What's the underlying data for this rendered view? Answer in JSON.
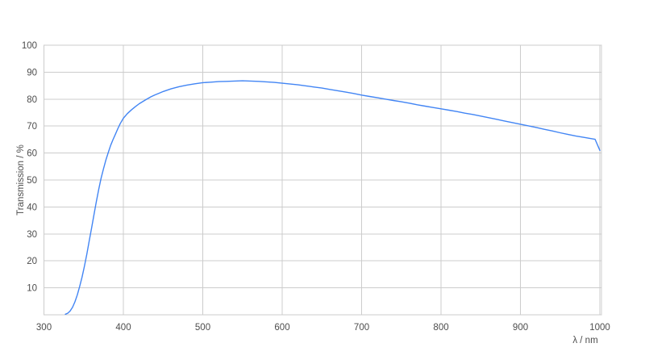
{
  "colors": {
    "background": "#ffffff",
    "grid": "#cccccc",
    "axis_text": "#4d4d4d",
    "line": "#4285f4"
  },
  "chart_data": {
    "type": "line",
    "xlabel": "λ / nm",
    "ylabel": "Transmission / %",
    "xlim": [
      300,
      1002
    ],
    "ylim": [
      0,
      100
    ],
    "x_ticks": [
      300,
      400,
      500,
      600,
      700,
      800,
      900,
      1000
    ],
    "y_ticks": [
      10,
      20,
      30,
      40,
      50,
      60,
      70,
      80,
      90,
      100
    ],
    "grid": true,
    "legend": false,
    "series": [
      {
        "color": "#4285f4",
        "points": [
          [
            327,
            0.2
          ],
          [
            330,
            0.6
          ],
          [
            333,
            1.4
          ],
          [
            336,
            2.8
          ],
          [
            339,
            4.8
          ],
          [
            342,
            7.4
          ],
          [
            345,
            10.5
          ],
          [
            348,
            14.0
          ],
          [
            351,
            18.0
          ],
          [
            354,
            22.5
          ],
          [
            357,
            27.3
          ],
          [
            360,
            32.2
          ],
          [
            363,
            37.2
          ],
          [
            366,
            42.0
          ],
          [
            369,
            46.6
          ],
          [
            372,
            50.7
          ],
          [
            375,
            54.2
          ],
          [
            378,
            57.4
          ],
          [
            381,
            60.2
          ],
          [
            384,
            62.8
          ],
          [
            387,
            65.0
          ],
          [
            390,
            67.0
          ],
          [
            393,
            69.0
          ],
          [
            396,
            70.9
          ],
          [
            400,
            72.9
          ],
          [
            405,
            74.6
          ],
          [
            410,
            76.0
          ],
          [
            415,
            77.2
          ],
          [
            420,
            78.3
          ],
          [
            425,
            79.2
          ],
          [
            430,
            80.1
          ],
          [
            435,
            80.9
          ],
          [
            440,
            81.6
          ],
          [
            445,
            82.2
          ],
          [
            450,
            82.8
          ],
          [
            460,
            83.8
          ],
          [
            470,
            84.6
          ],
          [
            480,
            85.2
          ],
          [
            490,
            85.7
          ],
          [
            500,
            86.1
          ],
          [
            510,
            86.3
          ],
          [
            520,
            86.5
          ],
          [
            530,
            86.6
          ],
          [
            540,
            86.7
          ],
          [
            550,
            86.8
          ],
          [
            560,
            86.7
          ],
          [
            570,
            86.6
          ],
          [
            580,
            86.4
          ],
          [
            590,
            86.2
          ],
          [
            600,
            85.9
          ],
          [
            610,
            85.6
          ],
          [
            620,
            85.3
          ],
          [
            630,
            84.9
          ],
          [
            640,
            84.5
          ],
          [
            650,
            84.1
          ],
          [
            660,
            83.6
          ],
          [
            670,
            83.1
          ],
          [
            680,
            82.6
          ],
          [
            690,
            82.1
          ],
          [
            700,
            81.5
          ],
          [
            710,
            81.0
          ],
          [
            720,
            80.5
          ],
          [
            730,
            80.0
          ],
          [
            740,
            79.5
          ],
          [
            750,
            79.0
          ],
          [
            760,
            78.5
          ],
          [
            770,
            77.9
          ],
          [
            780,
            77.4
          ],
          [
            790,
            76.9
          ],
          [
            800,
            76.4
          ],
          [
            810,
            75.9
          ],
          [
            820,
            75.4
          ],
          [
            830,
            74.8
          ],
          [
            840,
            74.3
          ],
          [
            850,
            73.7
          ],
          [
            860,
            73.1
          ],
          [
            870,
            72.5
          ],
          [
            880,
            71.9
          ],
          [
            890,
            71.3
          ],
          [
            900,
            70.7
          ],
          [
            910,
            70.1
          ],
          [
            920,
            69.5
          ],
          [
            930,
            68.8
          ],
          [
            940,
            68.2
          ],
          [
            950,
            67.5
          ],
          [
            960,
            66.9
          ],
          [
            970,
            66.3
          ],
          [
            980,
            65.8
          ],
          [
            988,
            65.4
          ],
          [
            994,
            65.1
          ],
          [
            1000,
            61.0
          ]
        ]
      }
    ]
  }
}
